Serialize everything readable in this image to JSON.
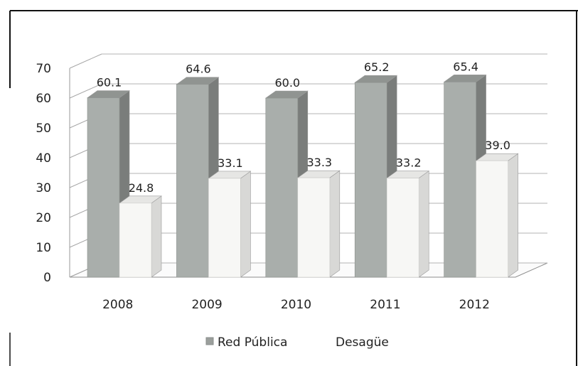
{
  "chart_data": {
    "type": "bar",
    "categories": [
      "2008",
      "2009",
      "2010",
      "2011",
      "2012"
    ],
    "series": [
      {
        "name": "Red Pública",
        "values": [
          60.1,
          64.6,
          60.0,
          65.2,
          65.4
        ],
        "labels": [
          "60.1",
          "64.6",
          "60.0",
          "65.2",
          "65.4"
        ],
        "color": "#a9aeab"
      },
      {
        "name": "Desagüe",
        "values": [
          24.8,
          33.1,
          33.3,
          33.2,
          39.0
        ],
        "labels": [
          "24.8",
          "33.1",
          "33.3",
          "33.2",
          "39.0"
        ],
        "color": "#f7f7f5"
      }
    ],
    "yticks": [
      "0",
      "10",
      "20",
      "30",
      "40",
      "50",
      "60",
      "70"
    ],
    "ylim": [
      0,
      70
    ],
    "grid": true,
    "legend_position": "bottom",
    "style": "3d-clustered-column"
  }
}
